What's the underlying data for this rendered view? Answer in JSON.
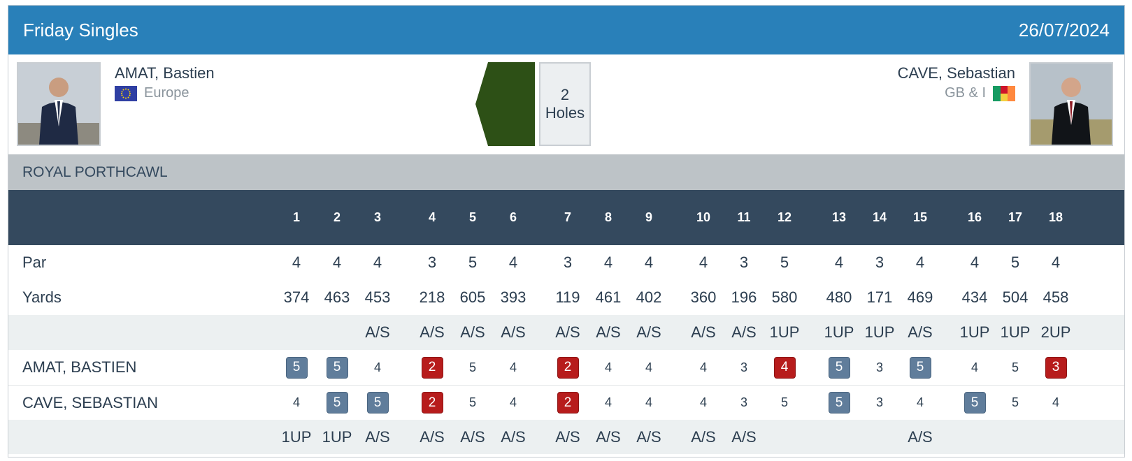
{
  "header": {
    "title": "Friday Singles",
    "date": "26/07/2024"
  },
  "player_left": {
    "name": "AMAT, Bastien",
    "team": "Europe",
    "flag_icon": "eu-flag-icon",
    "photo_icon": "player-photo"
  },
  "player_right": {
    "name": "CAVE, Sebastian",
    "team": "GB & I",
    "flag_icon": "gbi-flag-icon",
    "photo_icon": "player-photo"
  },
  "match": {
    "margin_number": "2",
    "margin_unit": "Holes",
    "leader_color": "#2d5016",
    "leader_side": "left"
  },
  "course": {
    "name": "ROYAL PORTHCAWL"
  },
  "colors": {
    "header_bg": "#2980b9",
    "table_head_bg": "#34495e",
    "course_bg": "#bdc3c7",
    "birdie": "#b71c1c",
    "bogey": "#607d9b"
  },
  "holes": [
    "1",
    "2",
    "3",
    "4",
    "5",
    "6",
    "7",
    "8",
    "9",
    "10",
    "11",
    "12",
    "13",
    "14",
    "15",
    "16",
    "17",
    "18"
  ],
  "par": {
    "label": "Par",
    "values": [
      "4",
      "4",
      "4",
      "3",
      "5",
      "4",
      "3",
      "4",
      "4",
      "4",
      "3",
      "5",
      "4",
      "3",
      "4",
      "4",
      "5",
      "4"
    ]
  },
  "yards": {
    "label": "Yards",
    "values": [
      "374",
      "463",
      "453",
      "218",
      "605",
      "393",
      "119",
      "461",
      "402",
      "360",
      "196",
      "580",
      "480",
      "171",
      "469",
      "434",
      "504",
      "458"
    ]
  },
  "status_top": [
    "",
    "",
    "A/S",
    "A/S",
    "A/S",
    "A/S",
    "A/S",
    "A/S",
    "A/S",
    "A/S",
    "A/S",
    "1UP",
    "1UP",
    "1UP",
    "A/S",
    "1UP",
    "1UP",
    "2UP"
  ],
  "scores": [
    {
      "label": "AMAT, BASTIEN",
      "values": [
        "5",
        "5",
        "4",
        "2",
        "5",
        "4",
        "2",
        "4",
        "4",
        "4",
        "3",
        "4",
        "5",
        "3",
        "5",
        "4",
        "5",
        "3"
      ],
      "marks": [
        "bogey",
        "bogey",
        "",
        "birdie",
        "",
        "",
        "birdie",
        "",
        "",
        "",
        "",
        "birdie",
        "bogey",
        "",
        "bogey",
        "",
        "",
        "birdie"
      ]
    },
    {
      "label": "CAVE, SEBASTIAN",
      "values": [
        "4",
        "5",
        "5",
        "2",
        "5",
        "4",
        "2",
        "4",
        "4",
        "4",
        "3",
        "5",
        "5",
        "3",
        "4",
        "5",
        "5",
        "4"
      ],
      "marks": [
        "",
        "bogey",
        "bogey",
        "birdie",
        "",
        "",
        "birdie",
        "",
        "",
        "",
        "",
        "",
        "bogey",
        "",
        "",
        "bogey",
        "",
        ""
      ]
    }
  ],
  "status_bottom": [
    "1UP",
    "1UP",
    "A/S",
    "A/S",
    "A/S",
    "A/S",
    "A/S",
    "A/S",
    "A/S",
    "A/S",
    "A/S",
    "",
    "",
    "",
    "A/S",
    "",
    "",
    ""
  ]
}
